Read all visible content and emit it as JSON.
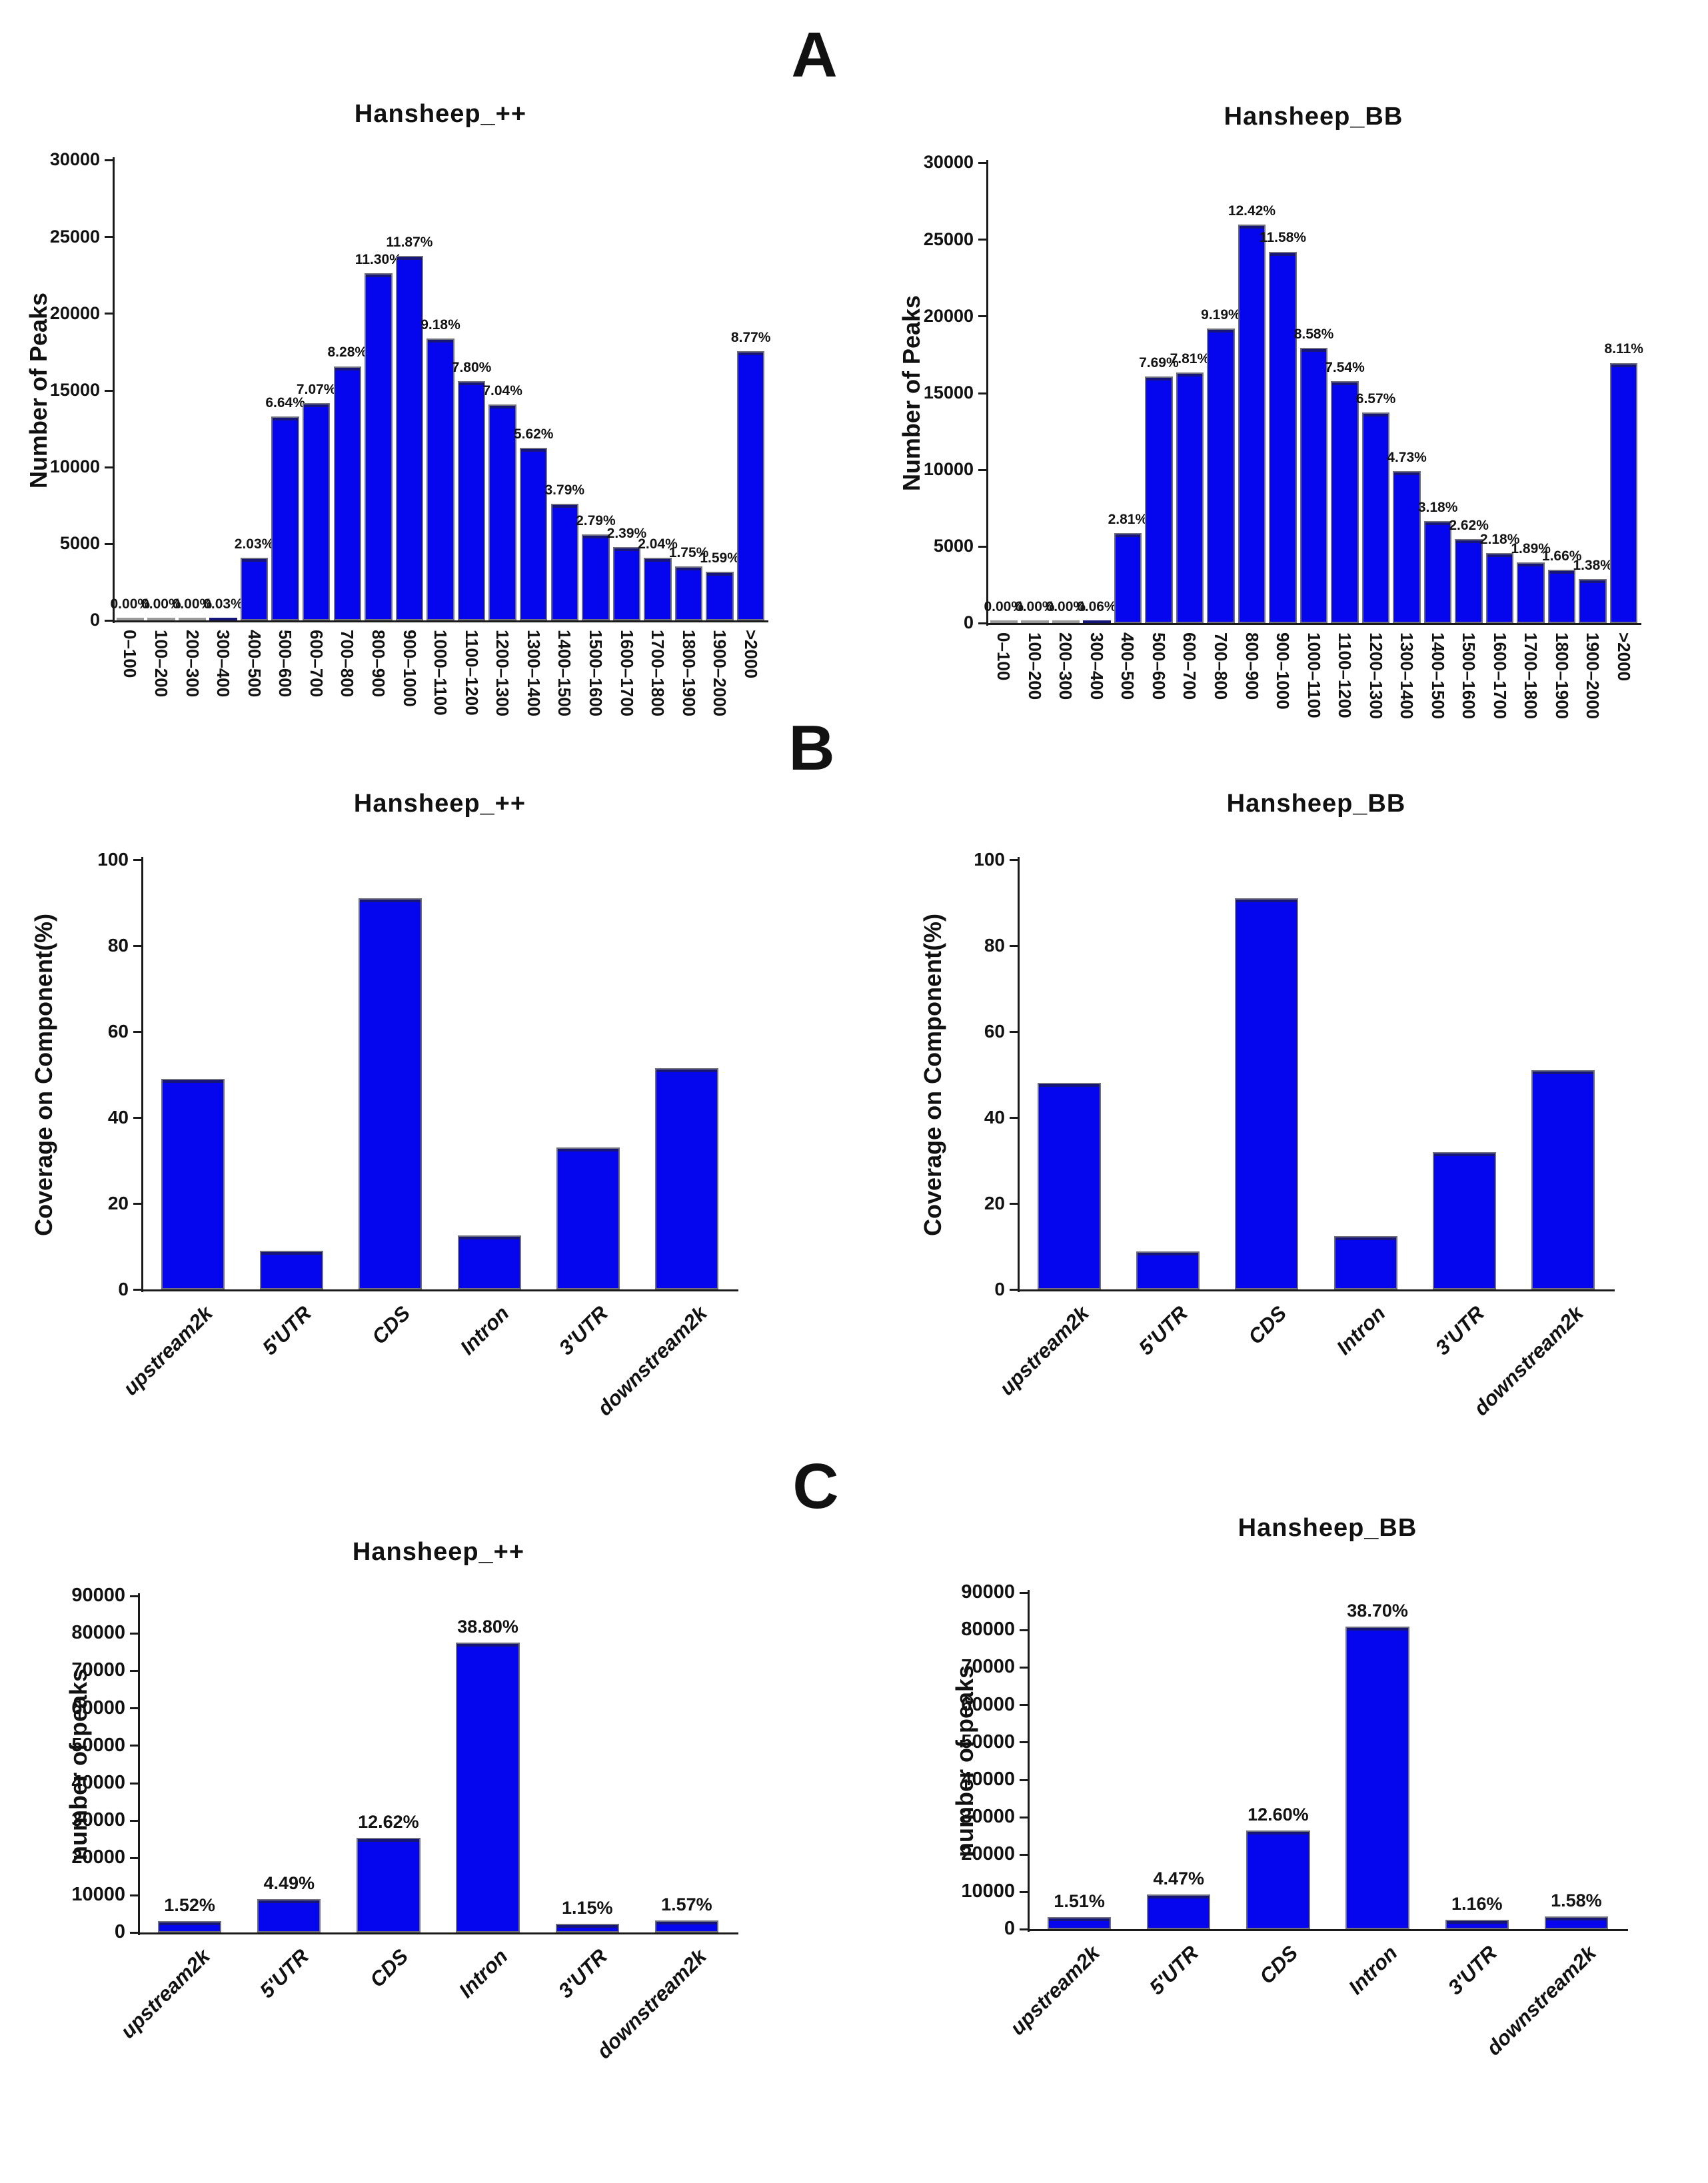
{
  "figure": {
    "sections": [
      {
        "label": "A"
      },
      {
        "label": "B"
      },
      {
        "label": "C"
      }
    ]
  },
  "colors": {
    "bar_fill": "#0606ee",
    "bar_top_edge": "#16167a",
    "bar_border": "#70707e",
    "axis": "#1a1a1a",
    "zero_bar": "#9a9a9a"
  },
  "chart_data": [
    {
      "id": "peak-length-hansheep-plus",
      "type": "bar",
      "title": "Hansheep_++",
      "ylabel": "Number of Peaks",
      "xlabel": "",
      "ylim": [
        0,
        30000
      ],
      "yticks": [
        0,
        5000,
        10000,
        15000,
        20000,
        25000,
        30000
      ],
      "grid": false,
      "legend": null,
      "categories": [
        "0–100",
        "100–200",
        "200–300",
        "300–400",
        "400–500",
        "500–600",
        "600–700",
        "700–800",
        "800–900",
        "900–1000",
        "1000–1100",
        "1100–1200",
        "1200–1300",
        "1300–1400",
        "1400–1500",
        "1500–1600",
        "1600–1700",
        "1700–1800",
        "1800–1900",
        "1900–2000",
        ">2000"
      ],
      "values": [
        0,
        0,
        0,
        60,
        4060,
        13280,
        14140,
        16560,
        22600,
        23740,
        18360,
        15600,
        14080,
        11240,
        7580,
        5580,
        4780,
        4080,
        3500,
        3180,
        17540
      ],
      "bar_labels": [
        "0.00%",
        "0.00%",
        "0.00%",
        "0.03%",
        "2.03%",
        "6.64%",
        "7.07%",
        "8.28%",
        "11.30%",
        "11.87%",
        "9.18%",
        "7.80%",
        "7.04%",
        "5.62%",
        "3.79%",
        "2.79%",
        "2.39%",
        "2.04%",
        "1.75%",
        "1.59%",
        "8.77%"
      ],
      "xtick_rotation": 90,
      "xtick_italic": false
    },
    {
      "id": "peak-length-hansheep-bb",
      "type": "bar",
      "title": "Hansheep_BB",
      "ylabel": "Number of Peaks",
      "xlabel": "",
      "ylim": [
        0,
        30000
      ],
      "yticks": [
        0,
        5000,
        10000,
        15000,
        20000,
        25000,
        30000
      ],
      "grid": false,
      "legend": null,
      "categories": [
        "0–100",
        "100–200",
        "200–300",
        "300–400",
        "400–500",
        "500–600",
        "600–700",
        "700–800",
        "800–900",
        "900–1000",
        "1000–1100",
        "1100–1200",
        "1200–1300",
        "1300–1400",
        "1400–1500",
        "1500–1600",
        "1600–1700",
        "1700–1800",
        "1800–1900",
        "1900–2000",
        ">2000"
      ],
      "values": [
        0,
        0,
        0,
        125,
        5870,
        16070,
        16320,
        19200,
        25960,
        24200,
        17930,
        15760,
        13730,
        9890,
        6650,
        5480,
        4560,
        3950,
        3470,
        2880,
        16950
      ],
      "bar_labels": [
        "0.00%",
        "0.00%",
        "0.00%",
        "0.06%",
        "2.81%",
        "7.69%",
        "7.81%",
        "9.19%",
        "12.42%",
        "11.58%",
        "8.58%",
        "7.54%",
        "6.57%",
        "4.73%",
        "3.18%",
        "2.62%",
        "2.18%",
        "1.89%",
        "1.66%",
        "1.38%",
        "8.11%"
      ],
      "xtick_rotation": 90,
      "xtick_italic": false
    },
    {
      "id": "coverage-component-hansheep-plus",
      "type": "bar",
      "title": "Hansheep_++",
      "ylabel": "Coverage on Component(%)",
      "xlabel": "",
      "ylim": [
        0,
        100
      ],
      "yticks": [
        0,
        20,
        40,
        60,
        80,
        100
      ],
      "grid": false,
      "legend": null,
      "categories": [
        "upstream2k",
        "5'UTR",
        "CDS",
        "Intron",
        "3'UTR",
        "downstream2k"
      ],
      "values": [
        49,
        9,
        91,
        12.5,
        33,
        51.5
      ],
      "bar_labels": null,
      "xtick_rotation": 45,
      "xtick_italic": true
    },
    {
      "id": "coverage-component-hansheep-bb",
      "type": "bar",
      "title": "Hansheep_BB",
      "ylabel": "Coverage on Component(%)",
      "xlabel": "",
      "ylim": [
        0,
        100
      ],
      "yticks": [
        0,
        20,
        40,
        60,
        80,
        100
      ],
      "grid": false,
      "legend": null,
      "categories": [
        "upstream2k",
        "5'UTR",
        "CDS",
        "Intron",
        "3'UTR",
        "downstream2k"
      ],
      "values": [
        48,
        8.8,
        91,
        12.4,
        32,
        51
      ],
      "bar_labels": null,
      "xtick_rotation": 45,
      "xtick_italic": true
    },
    {
      "id": "peak-number-hansheep-plus",
      "type": "bar",
      "title": "Hansheep_++",
      "ylabel": "number of peaks",
      "xlabel": "",
      "ylim": [
        0,
        90000
      ],
      "yticks": [
        0,
        10000,
        20000,
        30000,
        40000,
        50000,
        60000,
        70000,
        80000,
        90000
      ],
      "grid": false,
      "legend": null,
      "categories": [
        "upstream2k",
        "5'UTR",
        "CDS",
        "Intron",
        "3'UTR",
        "downstream2k"
      ],
      "values": [
        3040,
        8980,
        25240,
        77600,
        2300,
        3140
      ],
      "bar_labels": [
        "1.52%",
        "4.49%",
        "12.62%",
        "38.80%",
        "1.15%",
        "1.57%"
      ],
      "xtick_rotation": 45,
      "xtick_italic": true
    },
    {
      "id": "peak-number-hansheep-bb",
      "type": "bar",
      "title": "Hansheep_BB",
      "ylabel": "number of peaks",
      "xlabel": "",
      "ylim": [
        0,
        90000
      ],
      "yticks": [
        0,
        10000,
        20000,
        30000,
        40000,
        50000,
        60000,
        70000,
        80000,
        90000
      ],
      "grid": false,
      "legend": null,
      "categories": [
        "upstream2k",
        "5'UTR",
        "CDS",
        "Intron",
        "3'UTR",
        "downstream2k"
      ],
      "values": [
        3160,
        9340,
        26330,
        80870,
        2420,
        3300
      ],
      "bar_labels": [
        "1.51%",
        "4.47%",
        "12.60%",
        "38.70%",
        "1.16%",
        "1.58%"
      ],
      "xtick_rotation": 45,
      "xtick_italic": true
    }
  ]
}
